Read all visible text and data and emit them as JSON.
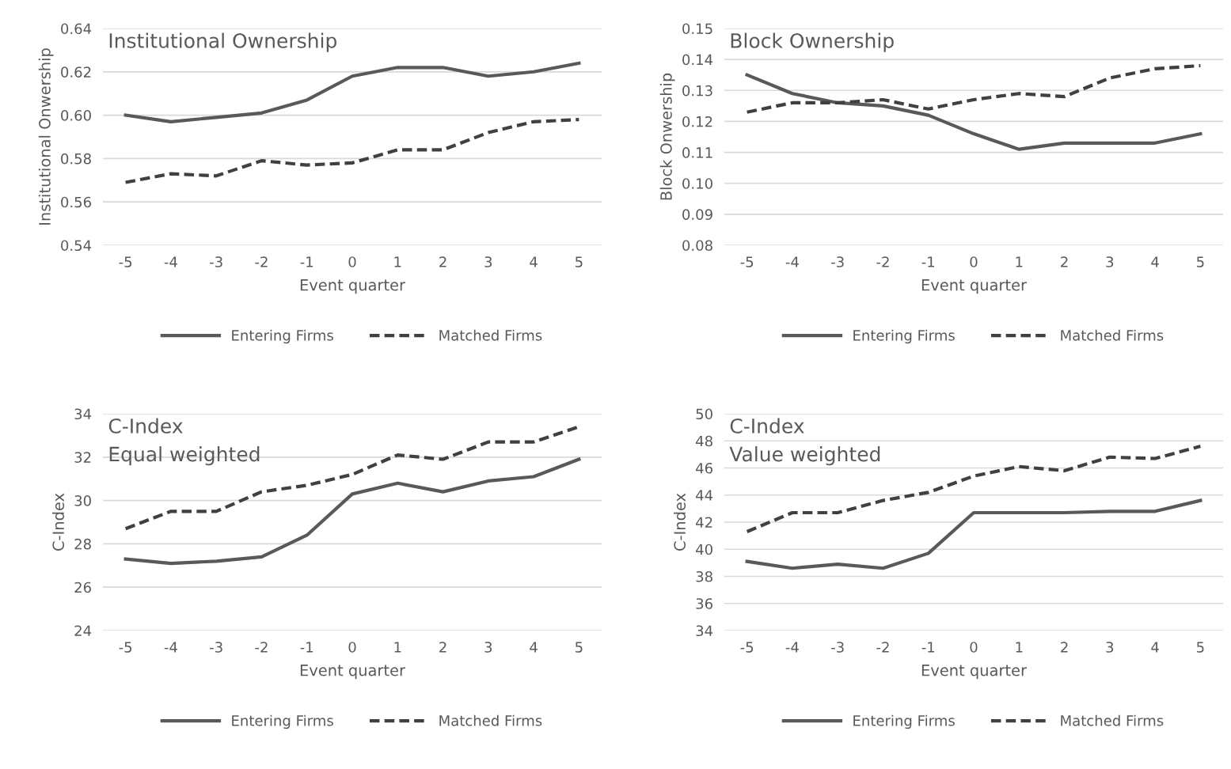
{
  "chart_data": [
    {
      "type": "line",
      "title": "Institutional Ownership",
      "xlabel": "Event quarter",
      "ylabel": "Institutional Onwership",
      "categories": [
        "-5",
        "-4",
        "-3",
        "-2",
        "-1",
        "0",
        "1",
        "2",
        "3",
        "4",
        "5"
      ],
      "ylim": [
        0.54,
        0.64
      ],
      "yticks": [
        {
          "value": 0.54,
          "label": "0.54"
        },
        {
          "value": 0.56,
          "label": "0.56"
        },
        {
          "value": 0.58,
          "label": "0.58"
        },
        {
          "value": 0.6,
          "label": "0.60"
        },
        {
          "value": 0.62,
          "label": "0.62"
        },
        {
          "value": 0.64,
          "label": "0.64"
        }
      ],
      "grid": "y",
      "legend": "bottom",
      "marker": "none",
      "series": [
        {
          "name": "Entering Firms",
          "color": "#595959",
          "line_style": "solid",
          "values": [
            0.6,
            0.597,
            0.599,
            0.601,
            0.607,
            0.618,
            0.622,
            0.622,
            0.618,
            0.62,
            0.624
          ]
        },
        {
          "name": "Matched Firms",
          "color": "#404040",
          "line_style": "dashed",
          "values": [
            0.569,
            0.573,
            0.572,
            0.579,
            0.577,
            0.578,
            0.584,
            0.584,
            0.592,
            0.597,
            0.598
          ]
        }
      ]
    },
    {
      "type": "line",
      "title": "Block Ownership",
      "xlabel": "Event quarter",
      "ylabel": "Block Onwership",
      "categories": [
        "-5",
        "-4",
        "-3",
        "-2",
        "-1",
        "0",
        "1",
        "2",
        "3",
        "4",
        "5"
      ],
      "ylim": [
        0.08,
        0.15
      ],
      "yticks": [
        {
          "value": 0.08,
          "label": "0.08"
        },
        {
          "value": 0.09,
          "label": "0.09"
        },
        {
          "value": 0.1,
          "label": "0.10"
        },
        {
          "value": 0.11,
          "label": "0.11"
        },
        {
          "value": 0.12,
          "label": "0.12"
        },
        {
          "value": 0.13,
          "label": "0.13"
        },
        {
          "value": 0.14,
          "label": "0.14"
        },
        {
          "value": 0.15,
          "label": "0.15"
        }
      ],
      "grid": "y",
      "legend": "bottom",
      "marker": "none",
      "series": [
        {
          "name": "Entering Firms",
          "color": "#595959",
          "line_style": "solid",
          "values": [
            0.135,
            0.129,
            0.126,
            0.125,
            0.122,
            0.116,
            0.111,
            0.113,
            0.113,
            0.113,
            0.116
          ]
        },
        {
          "name": "Matched Firms",
          "color": "#404040",
          "line_style": "dashed",
          "values": [
            0.123,
            0.126,
            0.126,
            0.127,
            0.124,
            0.127,
            0.129,
            0.128,
            0.134,
            0.137,
            0.138
          ]
        }
      ]
    },
    {
      "type": "line",
      "title": "C-Index\nEqual weighted",
      "xlabel": "Event quarter",
      "ylabel": "C-Index",
      "categories": [
        "-5",
        "-4",
        "-3",
        "-2",
        "-1",
        "0",
        "1",
        "2",
        "3",
        "4",
        "5"
      ],
      "ylim": [
        24,
        34
      ],
      "yticks": [
        24,
        26,
        28,
        30,
        32,
        34
      ],
      "grid": "y",
      "legend": "bottom",
      "marker": "none",
      "series": [
        {
          "name": "Entering Firms",
          "color": "#595959",
          "line_style": "solid",
          "values": [
            27.3,
            27.1,
            27.2,
            27.4,
            28.4,
            30.3,
            30.8,
            30.4,
            30.9,
            31.1,
            31.9
          ]
        },
        {
          "name": "Matched Firms",
          "color": "#404040",
          "line_style": "dashed",
          "values": [
            28.7,
            29.5,
            29.5,
            30.4,
            30.7,
            31.2,
            32.1,
            31.9,
            32.7,
            32.7,
            33.4
          ]
        }
      ]
    },
    {
      "type": "line",
      "title": "C-Index\nValue weighted",
      "xlabel": "Event quarter",
      "ylabel": "C-Index",
      "categories": [
        "-5",
        "-4",
        "-3",
        "-2",
        "-1",
        "0",
        "1",
        "2",
        "3",
        "4",
        "5"
      ],
      "ylim": [
        34,
        50
      ],
      "yticks": [
        34,
        36,
        38,
        40,
        42,
        44,
        46,
        48,
        50
      ],
      "grid": "y",
      "legend": "bottom",
      "marker": "none",
      "series": [
        {
          "name": "Entering Firms",
          "color": "#595959",
          "line_style": "solid",
          "values": [
            39.1,
            38.6,
            38.9,
            38.6,
            39.7,
            42.7,
            42.7,
            42.7,
            42.8,
            42.8,
            43.6
          ]
        },
        {
          "name": "Matched Firms",
          "color": "#404040",
          "line_style": "dashed",
          "values": [
            41.3,
            42.7,
            42.7,
            43.6,
            44.2,
            45.4,
            46.1,
            45.8,
            46.8,
            46.7,
            47.6
          ]
        }
      ]
    }
  ]
}
